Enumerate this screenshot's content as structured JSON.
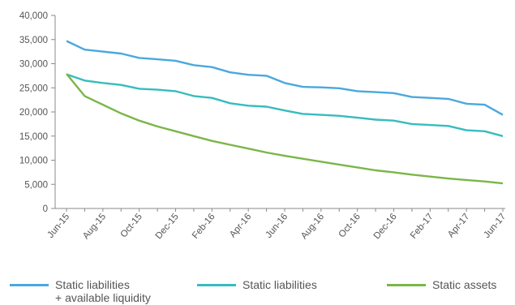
{
  "colors": {
    "series_1": "#4aa8dd",
    "series_2": "#37bcbc",
    "series_3": "#7ab648",
    "axis": "#8a8a8a",
    "text": "#555555"
  },
  "chart_data": {
    "type": "line",
    "title": "",
    "xlabel": "",
    "ylabel": "",
    "ylim": [
      0,
      40000
    ],
    "yticks": [
      "0",
      "5,000",
      "10,000",
      "15,000",
      "20,000",
      "25,000",
      "30,000",
      "35,000",
      "40,000"
    ],
    "ytick_values": [
      0,
      5000,
      10000,
      15000,
      20000,
      25000,
      30000,
      35000,
      40000
    ],
    "x": [
      "Jun-15",
      "Jul-15",
      "Aug-15",
      "Sep-15",
      "Oct-15",
      "Nov-15",
      "Dec-15",
      "Jan-16",
      "Feb-16",
      "Mar-16",
      "Apr-16",
      "May-16",
      "Jun-16",
      "Jul-16",
      "Aug-16",
      "Sep-16",
      "Oct-16",
      "Nov-16",
      "Dec-16",
      "Jan-17",
      "Feb-17",
      "Mar-17",
      "Apr-17",
      "May-17",
      "Jun-17"
    ],
    "xtick_labels": [
      "Jun-15",
      "Aug-15",
      "Oct-15",
      "Dec-15",
      "Feb-16",
      "Apr-16",
      "Jun-16",
      "Aug-16",
      "Oct-16",
      "Dec-16",
      "Feb-17",
      "Apr-17",
      "Jun-17"
    ],
    "grid": false,
    "legend_position": "bottom",
    "series": [
      {
        "name": "Static liabilities\n+ available liquidity",
        "name_line1": "Static liabilities",
        "name_line2": "+ available liquidity",
        "color": "#4aa8dd",
        "values": [
          34700,
          32900,
          32500,
          32100,
          31200,
          30900,
          30600,
          29700,
          29300,
          28200,
          27700,
          27500,
          26000,
          25200,
          25100,
          24900,
          24300,
          24100,
          23900,
          23100,
          22900,
          22700,
          21700,
          21500,
          19400
        ]
      },
      {
        "name": "Static liabilities",
        "color": "#37bcbc",
        "values": [
          27800,
          26500,
          26000,
          25600,
          24800,
          24600,
          24300,
          23300,
          22900,
          21800,
          21300,
          21100,
          20300,
          19600,
          19400,
          19200,
          18800,
          18400,
          18200,
          17500,
          17300,
          17100,
          16200,
          16000,
          15000
        ]
      },
      {
        "name": "Static assets",
        "color": "#7ab648",
        "values": [
          27900,
          23300,
          21500,
          19700,
          18200,
          17000,
          16000,
          15000,
          14000,
          13200,
          12400,
          11600,
          10900,
          10300,
          9700,
          9100,
          8500,
          7900,
          7500,
          7000,
          6600,
          6200,
          5900,
          5600,
          5200
        ]
      }
    ]
  }
}
